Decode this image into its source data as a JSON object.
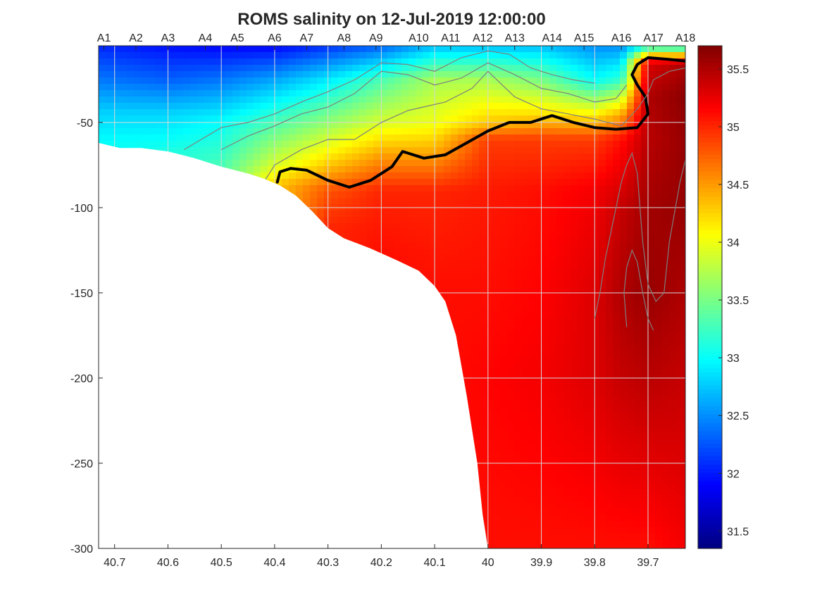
{
  "chart_data": {
    "type": "heatmap",
    "title": "ROMS salinity on 12-Jul-2019 12:00:00",
    "xlabel": "",
    "ylabel": "",
    "xlim": [
      40.73,
      39.63
    ],
    "ylim": [
      -300,
      -5
    ],
    "x_reversed": true,
    "x_ticks": [
      40.7,
      40.6,
      40.5,
      40.4,
      40.3,
      40.2,
      40.1,
      40,
      39.9,
      39.8,
      39.7
    ],
    "x_tick_labels": [
      "40.7",
      "40.6",
      "40.5",
      "40.4",
      "40.3",
      "40.2",
      "40.1",
      "40",
      "39.9",
      "39.8",
      "39.7"
    ],
    "y_ticks": [
      -50,
      -100,
      -150,
      -200,
      -250,
      -300
    ],
    "y_tick_labels": [
      "-50",
      "-100",
      "-150",
      "-200",
      "-250",
      "-300"
    ],
    "grid": true,
    "stations": {
      "labels": [
        "A1",
        "A2",
        "A3",
        "A4",
        "A5",
        "A6",
        "A7",
        "A8",
        "A9",
        "A10",
        "A11",
        "A12",
        "A13",
        "A14",
        "A15",
        "A16",
        "A17",
        "A18"
      ],
      "x": [
        40.72,
        40.66,
        40.6,
        40.53,
        40.47,
        40.4,
        40.34,
        40.27,
        40.21,
        40.13,
        40.07,
        40.01,
        39.95,
        39.88,
        39.82,
        39.75,
        39.69,
        39.63
      ]
    },
    "bathymetry": {
      "x": [
        40.73,
        40.69,
        40.65,
        40.6,
        40.55,
        40.5,
        40.45,
        40.42,
        40.39,
        40.36,
        40.33,
        40.3,
        40.27,
        40.22,
        40.17,
        40.13,
        40.1,
        40.08,
        40.06,
        40.04,
        40.02,
        40.01,
        40.0
      ],
      "depth": [
        -62,
        -65,
        -65,
        -67,
        -71,
        -76,
        -80,
        -83,
        -87,
        -93,
        -102,
        -112,
        -118,
        -124,
        -131,
        -137,
        -146,
        -155,
        -175,
        -210,
        -250,
        -280,
        -300
      ]
    },
    "colorbar": {
      "colormap": "jet",
      "range": [
        31.35,
        35.7
      ],
      "ticks": [
        31.5,
        32,
        32.5,
        33,
        33.5,
        34,
        34.5,
        35,
        35.5
      ],
      "tick_labels": [
        "31.5",
        "32",
        "32.5",
        "33",
        "33.5",
        "34",
        "34.5",
        "35",
        "35.5"
      ]
    },
    "salinity_profiles": [
      {
        "x": 40.72,
        "depth": [
          -5,
          -25,
          -45,
          -62
        ],
        "salinity": [
          32.05,
          32.4,
          32.8,
          33.0
        ]
      },
      {
        "x": 40.6,
        "depth": [
          -5,
          -25,
          -45,
          -67
        ],
        "salinity": [
          31.95,
          32.3,
          32.8,
          33.1
        ]
      },
      {
        "x": 40.5,
        "depth": [
          -5,
          -25,
          -50,
          -76
        ],
        "salinity": [
          31.9,
          32.4,
          33.0,
          33.3
        ]
      },
      {
        "x": 40.4,
        "depth": [
          -5,
          -25,
          -50,
          -75,
          -87
        ],
        "salinity": [
          31.9,
          32.6,
          33.3,
          33.9,
          34.3
        ]
      },
      {
        "x": 40.3,
        "depth": [
          -5,
          -25,
          -50,
          -75,
          -90,
          -112
        ],
        "salinity": [
          32.1,
          32.9,
          33.6,
          34.3,
          34.8,
          35.0
        ]
      },
      {
        "x": 40.2,
        "depth": [
          -5,
          -25,
          -50,
          -70,
          -90,
          -126
        ],
        "salinity": [
          32.3,
          33.3,
          33.9,
          34.5,
          35.0,
          35.1
        ]
      },
      {
        "x": 40.1,
        "depth": [
          -5,
          -25,
          -50,
          -70,
          -90,
          -146
        ],
        "salinity": [
          32.7,
          33.7,
          34.0,
          34.5,
          35.0,
          35.1
        ]
      },
      {
        "x": 40.0,
        "depth": [
          -5,
          -25,
          -50,
          -60,
          -90,
          -200,
          -300
        ],
        "salinity": [
          32.7,
          33.7,
          34.3,
          34.9,
          35.05,
          35.15,
          35.1
        ]
      },
      {
        "x": 39.9,
        "depth": [
          -5,
          -25,
          -45,
          -60,
          -90,
          -200,
          -300
        ],
        "salinity": [
          32.7,
          33.5,
          34.2,
          34.9,
          35.1,
          35.2,
          35.1
        ]
      },
      {
        "x": 39.8,
        "depth": [
          -5,
          -25,
          -45,
          -60,
          -90,
          -150,
          -200,
          -300
        ],
        "salinity": [
          32.5,
          33.0,
          34.1,
          34.9,
          35.2,
          35.3,
          35.3,
          35.1
        ]
      },
      {
        "x": 39.75,
        "depth": [
          -5,
          -25,
          -45,
          -60,
          -100,
          -150,
          -200,
          -300
        ],
        "salinity": [
          32.5,
          33.2,
          34.4,
          35.1,
          35.4,
          35.5,
          35.4,
          35.1
        ]
      },
      {
        "x": 39.7,
        "depth": [
          -5,
          -15,
          -35,
          -60,
          -100,
          -150,
          -200,
          -300
        ],
        "salinity": [
          33.0,
          35.3,
          35.5,
          35.45,
          35.55,
          35.6,
          35.45,
          35.1
        ]
      },
      {
        "x": 39.63,
        "depth": [
          -5,
          -15,
          -35,
          -60,
          -100,
          -150,
          -200,
          -300
        ],
        "salinity": [
          32.9,
          35.5,
          35.65,
          35.6,
          35.6,
          35.5,
          35.4,
          35.2
        ]
      }
    ],
    "contours": [
      {
        "level": 35,
        "highlighted": true,
        "x": [
          40.395,
          40.39,
          40.37,
          40.34,
          40.3,
          40.26,
          40.22,
          40.18,
          40.16,
          40.12,
          40.08,
          40.04,
          40.0,
          39.96,
          39.92,
          39.88,
          39.84,
          39.8,
          39.76,
          39.72,
          39.7,
          39.705,
          39.72,
          39.73,
          39.72,
          39.7,
          39.66,
          39.63
        ],
        "y": [
          -85,
          -79,
          -77,
          -78,
          -84,
          -88,
          -84,
          -76,
          -67,
          -71,
          -69,
          -62,
          -55,
          -50,
          -50,
          -46,
          -50,
          -53,
          -54,
          -53,
          -45,
          -35,
          -28,
          -22,
          -16,
          -12,
          -13,
          -14
        ]
      },
      {
        "level": 34.5,
        "highlighted": false,
        "x": [
          40.42,
          40.4,
          40.35,
          40.3,
          40.25,
          40.2,
          40.15,
          40.08,
          40.03,
          40.0,
          39.95,
          39.9,
          39.85,
          39.8,
          39.75,
          39.72,
          39.7,
          39.69,
          39.66,
          39.63
        ],
        "y": [
          -85,
          -75,
          -66,
          -60,
          -60,
          -50,
          -43,
          -38,
          -30,
          -20,
          -35,
          -42,
          -45,
          -48,
          -52,
          -42,
          -33,
          -25,
          -20,
          -18
        ]
      },
      {
        "level": 34,
        "highlighted": false,
        "x": [
          40.5,
          40.45,
          40.4,
          40.35,
          40.3,
          40.25,
          40.2,
          40.15,
          40.1,
          40.05,
          40.0,
          39.95,
          39.9,
          39.85,
          39.8,
          39.76,
          39.74
        ],
        "y": [
          -66,
          -58,
          -52,
          -45,
          -41,
          -33,
          -20,
          -22,
          -28,
          -24,
          -15,
          -22,
          -30,
          -33,
          -38,
          -36,
          -28
        ]
      },
      {
        "level": 33.5,
        "highlighted": false,
        "x": [
          40.57,
          40.5,
          40.45,
          40.4,
          40.35,
          40.3,
          40.25,
          40.2,
          40.15,
          40.1,
          40.05,
          40.0,
          39.96,
          39.92,
          39.88,
          39.84,
          39.8
        ],
        "y": [
          -66,
          -53,
          -50,
          -45,
          -38,
          -32,
          -25,
          -15,
          -16,
          -20,
          -12,
          -8,
          -10,
          -18,
          -22,
          -25,
          -27
        ]
      },
      {
        "level": 35.5,
        "highlighted": false,
        "x": [
          39.8,
          39.79,
          39.78,
          39.76,
          39.75,
          39.74,
          39.73,
          39.72,
          39.71,
          39.7,
          39.685,
          39.67,
          39.66,
          39.64,
          39.63
        ],
        "y": [
          -165,
          -150,
          -130,
          -100,
          -85,
          -75,
          -68,
          -80,
          -120,
          -145,
          -155,
          -150,
          -120,
          -85,
          -72
        ]
      },
      {
        "level": 35.5,
        "highlighted": false,
        "x": [
          39.74,
          39.745,
          39.74,
          39.73,
          39.72,
          39.71,
          39.7,
          39.69
        ],
        "y": [
          -170,
          -150,
          -135,
          -125,
          -132,
          -150,
          -165,
          -172
        ]
      }
    ]
  }
}
